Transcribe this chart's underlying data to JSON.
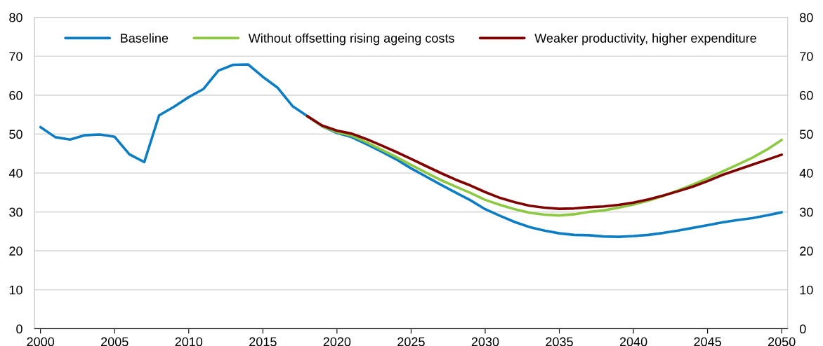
{
  "chart_data": {
    "type": "line",
    "xlim": [
      1999.6,
      2050.4
    ],
    "xticks": [
      2000,
      2005,
      2010,
      2015,
      2020,
      2025,
      2030,
      2035,
      2040,
      2045,
      2050
    ],
    "ylim": [
      0,
      80
    ],
    "yticks": [
      0,
      10,
      20,
      30,
      40,
      50,
      60,
      70,
      80
    ],
    "y2lim": [
      0,
      80
    ],
    "y2ticks": [
      0,
      10,
      20,
      30,
      40,
      50,
      60,
      70,
      80
    ],
    "grid": "y",
    "legend": "top",
    "line_style": "solid",
    "series": [
      {
        "name": "Baseline",
        "color": "#0c7dc2",
        "x": [
          2000,
          2001,
          2002,
          2003,
          2004,
          2005,
          2006,
          2007,
          2008,
          2009,
          2010,
          2011,
          2012,
          2013,
          2014,
          2015,
          2016,
          2017,
          2018,
          2019,
          2020,
          2021,
          2022,
          2023,
          2024,
          2025,
          2026,
          2027,
          2028,
          2029,
          2030,
          2031,
          2032,
          2033,
          2034,
          2035,
          2036,
          2037,
          2038,
          2039,
          2040,
          2041,
          2042,
          2043,
          2044,
          2045,
          2046,
          2047,
          2048,
          2049,
          2050
        ],
        "values": [
          51.8,
          49.2,
          48.6,
          49.7,
          49.9,
          49.3,
          44.8,
          42.8,
          54.8,
          57,
          59.5,
          61.6,
          66.3,
          67.8,
          67.9,
          64.7,
          61.9,
          57.2,
          54.6,
          52,
          50.3,
          49.2,
          47.4,
          45.5,
          43.5,
          41.2,
          39.1,
          37,
          35,
          33,
          30.7,
          29,
          27.4,
          26.1,
          25.2,
          24.5,
          24.1,
          24,
          23.7,
          23.6,
          23.8,
          24.1,
          24.6,
          25.2,
          25.9,
          26.6,
          27.3,
          27.9,
          28.4,
          29.1,
          29.9
        ]
      },
      {
        "name": "Without offsetting rising ageing costs",
        "color": "#8cc841",
        "x": [
          2018,
          2019,
          2020,
          2021,
          2022,
          2023,
          2024,
          2025,
          2026,
          2027,
          2028,
          2029,
          2030,
          2031,
          2032,
          2033,
          2034,
          2035,
          2036,
          2037,
          2038,
          2039,
          2040,
          2041,
          2042,
          2043,
          2044,
          2045,
          2046,
          2047,
          2048,
          2049,
          2050
        ],
        "values": [
          54.6,
          52,
          50.5,
          49.6,
          47.9,
          46,
          44.1,
          42.1,
          40.1,
          38.2,
          36.5,
          34.9,
          33.1,
          31.8,
          30.7,
          29.8,
          29.3,
          29.1,
          29.4,
          30,
          30.4,
          31.1,
          31.9,
          32.9,
          34.1,
          35.5,
          37,
          38.6,
          40.4,
          42.1,
          43.9,
          46,
          48.5
        ]
      },
      {
        "name": "Weaker productivity, higher expenditure",
        "color": "#800000",
        "x": [
          2018,
          2019,
          2020,
          2021,
          2022,
          2023,
          2024,
          2025,
          2026,
          2027,
          2028,
          2029,
          2030,
          2031,
          2032,
          2033,
          2034,
          2035,
          2036,
          2037,
          2038,
          2039,
          2040,
          2041,
          2042,
          2043,
          2044,
          2045,
          2046,
          2047,
          2048,
          2049,
          2050
        ],
        "values": [
          54.6,
          52.2,
          50.9,
          50.1,
          48.7,
          47.1,
          45.4,
          43.6,
          41.8,
          40,
          38.3,
          36.8,
          35.1,
          33.6,
          32.5,
          31.6,
          31.1,
          30.8,
          30.9,
          31.2,
          31.4,
          31.8,
          32.4,
          33.2,
          34.2,
          35.3,
          36.5,
          37.9,
          39.5,
          40.8,
          42.1,
          43.4,
          44.7
        ]
      }
    ]
  }
}
